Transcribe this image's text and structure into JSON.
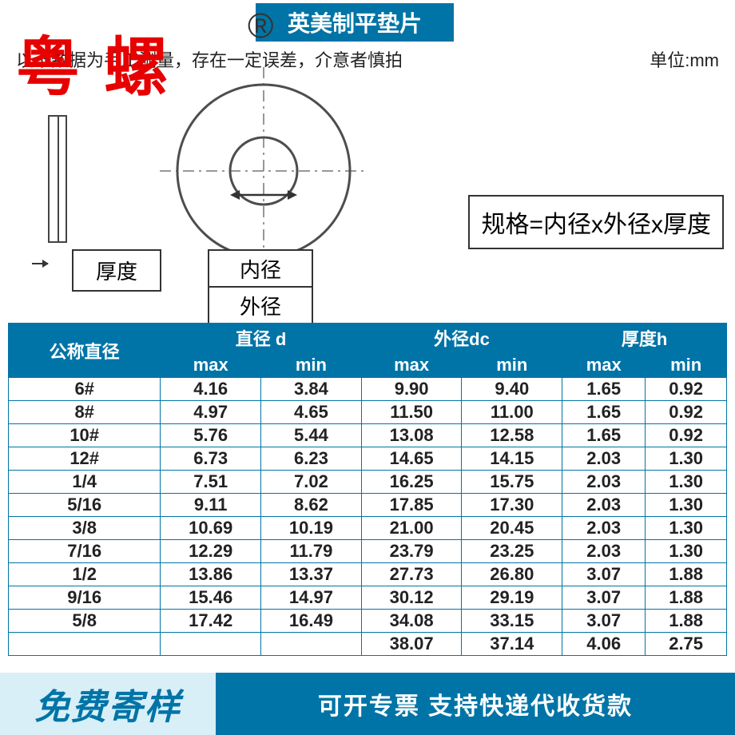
{
  "title": "英美制平垫片",
  "subtitle_left": "以下数据为手工测量，存在一定误差，介意者慎拍",
  "subtitle_right": "单位:mm",
  "watermark_brand": "粤 螺",
  "watermark_symbol": "®",
  "watermark_grey": "粤 螺",
  "diagram": {
    "thickness_label": "厚度",
    "inner_label": "内径",
    "outer_label": "外径",
    "formula": "规格=内径x外径x厚度",
    "stroke_color": "#4d4d4d",
    "outer_radius": 108,
    "inner_radius": 42
  },
  "table": {
    "header_bg": "#0074a6",
    "header_fg": "#ffffff",
    "col_nominal": "公称直径",
    "col_d": "直径 d",
    "col_dc": "外径dc",
    "col_h": "厚度h",
    "sub_max": "max",
    "sub_min": "min",
    "rows": [
      {
        "n": "6#",
        "dmax": "4.16",
        "dmin": "3.84",
        "dcmax": "9.90",
        "dcmin": "9.40",
        "hmax": "1.65",
        "hmin": "0.92"
      },
      {
        "n": "8#",
        "dmax": "4.97",
        "dmin": "4.65",
        "dcmax": "11.50",
        "dcmin": "11.00",
        "hmax": "1.65",
        "hmin": "0.92"
      },
      {
        "n": "10#",
        "dmax": "5.76",
        "dmin": "5.44",
        "dcmax": "13.08",
        "dcmin": "12.58",
        "hmax": "1.65",
        "hmin": "0.92"
      },
      {
        "n": "12#",
        "dmax": "6.73",
        "dmin": "6.23",
        "dcmax": "14.65",
        "dcmin": "14.15",
        "hmax": "2.03",
        "hmin": "1.30"
      },
      {
        "n": "1/4",
        "dmax": "7.51",
        "dmin": "7.02",
        "dcmax": "16.25",
        "dcmin": "15.75",
        "hmax": "2.03",
        "hmin": "1.30"
      },
      {
        "n": "5/16",
        "dmax": "9.11",
        "dmin": "8.62",
        "dcmax": "17.85",
        "dcmin": "17.30",
        "hmax": "2.03",
        "hmin": "1.30"
      },
      {
        "n": "3/8",
        "dmax": "10.69",
        "dmin": "10.19",
        "dcmax": "21.00",
        "dcmin": "20.45",
        "hmax": "2.03",
        "hmin": "1.30"
      },
      {
        "n": "7/16",
        "dmax": "12.29",
        "dmin": "11.79",
        "dcmax": "23.79",
        "dcmin": "23.25",
        "hmax": "2.03",
        "hmin": "1.30"
      },
      {
        "n": "1/2",
        "dmax": "13.86",
        "dmin": "13.37",
        "dcmax": "27.73",
        "dcmin": "26.80",
        "hmax": "3.07",
        "hmin": "1.88"
      },
      {
        "n": "9/16",
        "dmax": "15.46",
        "dmin": "14.97",
        "dcmax": "30.12",
        "dcmin": "29.19",
        "hmax": "3.07",
        "hmin": "1.88"
      },
      {
        "n": "5/8",
        "dmax": "17.42",
        "dmin": "16.49",
        "dcmax": "34.08",
        "dcmin": "33.15",
        "hmax": "3.07",
        "hmin": "1.88"
      },
      {
        "n": "",
        "dmax": "",
        "dmin": "",
        "dcmax": "38.07",
        "dcmin": "37.14",
        "hmax": "4.06",
        "hmin": "2.75"
      }
    ]
  },
  "footer": {
    "left": "免费寄样",
    "right": "可开专票 支持快递代收货款"
  }
}
